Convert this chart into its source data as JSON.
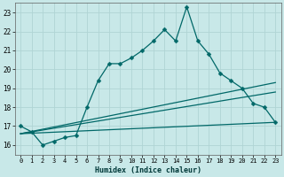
{
  "xlabel": "Humidex (Indice chaleur)",
  "bg_color": "#c8e8e8",
  "grid_color": "#b0d4d4",
  "line_color": "#006868",
  "xlim": [
    -0.5,
    23.5
  ],
  "ylim": [
    15.5,
    23.5
  ],
  "yticks": [
    16,
    17,
    18,
    19,
    20,
    21,
    22,
    23
  ],
  "xticks": [
    0,
    1,
    2,
    3,
    4,
    5,
    6,
    7,
    8,
    9,
    10,
    11,
    12,
    13,
    14,
    15,
    16,
    17,
    18,
    19,
    20,
    21,
    22,
    23
  ],
  "line1_x": [
    0,
    1,
    2,
    3,
    4,
    5,
    6,
    7,
    8,
    9,
    10,
    11,
    12,
    13,
    14,
    15,
    16,
    17,
    18,
    19,
    20,
    21,
    22,
    23
  ],
  "line1_y": [
    17.0,
    16.7,
    16.0,
    16.2,
    16.4,
    16.5,
    18.0,
    19.4,
    20.3,
    20.3,
    20.6,
    21.0,
    21.5,
    22.1,
    21.5,
    23.3,
    21.5,
    20.8,
    19.8,
    19.4,
    19.0,
    18.2,
    18.0,
    17.2
  ],
  "line2_x": [
    0,
    23
  ],
  "line2_y": [
    16.6,
    17.2
  ],
  "line3_x": [
    0,
    23
  ],
  "line3_y": [
    16.6,
    18.8
  ],
  "line4_x": [
    0,
    23
  ],
  "line4_y": [
    16.6,
    19.3
  ]
}
